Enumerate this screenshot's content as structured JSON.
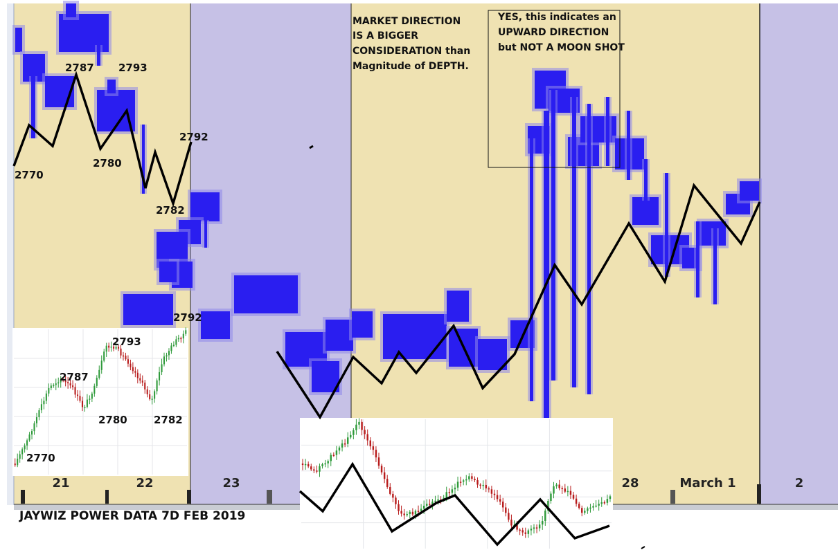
{
  "colors": {
    "tan": "#efe2b2",
    "lavender": "#c6c1e6",
    "depth_blue": "#2a1ef0",
    "depth_halo": "#8f88ea",
    "line": "#000000",
    "bull": "#2e9a3a",
    "bear": "#b81c1c"
  },
  "footer": {
    "title": "JAYWIZ POWER DATA 7D FEB 2019"
  },
  "annotations": {
    "market_direction": [
      "MARKET DIRECTION",
      "IS A BIGGER",
      "CONSIDERATION than",
      "Magnitude of DEPTH."
    ],
    "yes_box": [
      "YES, this indicates an",
      "UPWARD DIRECTION",
      "but NOT A MOON SHOT"
    ]
  },
  "chart_data": [
    {
      "type": "heatmap",
      "name_printed": "",
      "days": [
        "21",
        "22",
        "23",
        "28",
        "March 1",
        "2"
      ],
      "price_labels": [
        "2770",
        "2787",
        "2793",
        "2780",
        "2792",
        "2782",
        "2792"
      ],
      "grid": false,
      "direction_line": [
        2770,
        2779,
        2775,
        2787,
        2780,
        2793,
        2781,
        2785,
        2779,
        2792
      ]
    },
    {
      "type": "line",
      "name_printed": "",
      "price_labels": [
        "2770",
        "2787",
        "2793",
        "2780",
        "2782"
      ],
      "grid": true
    },
    {
      "type": "line",
      "name_printed": "",
      "grid": true
    }
  ]
}
